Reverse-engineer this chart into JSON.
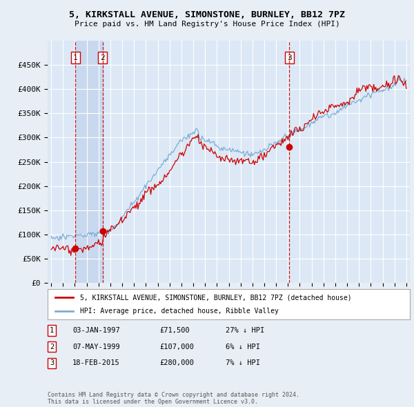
{
  "title": "5, KIRKSTALL AVENUE, SIMONSTONE, BURNLEY, BB12 7PZ",
  "subtitle": "Price paid vs. HM Land Registry's House Price Index (HPI)",
  "ylim": [
    0,
    500000
  ],
  "yticks": [
    0,
    50000,
    100000,
    150000,
    200000,
    250000,
    300000,
    350000,
    400000,
    450000
  ],
  "ytick_labels": [
    "£0",
    "£50K",
    "£100K",
    "£150K",
    "£200K",
    "£250K",
    "£300K",
    "£350K",
    "£400K",
    "£450K"
  ],
  "background_color": "#e8eef5",
  "plot_bg_color": "#dce8f5",
  "grid_color": "#ffffff",
  "red_line_color": "#cc0000",
  "blue_line_color": "#7badd4",
  "vline_color": "#cc0000",
  "shade_color": "#c8d8ee",
  "sale_points": [
    {
      "date_num": 1997.04,
      "price": 71500,
      "label": "1"
    },
    {
      "date_num": 1999.36,
      "price": 107000,
      "label": "2"
    },
    {
      "date_num": 2015.12,
      "price": 280000,
      "label": "3"
    }
  ],
  "vlines": [
    1997.04,
    1999.36,
    2015.12
  ],
  "legend_red": "5, KIRKSTALL AVENUE, SIMONSTONE, BURNLEY, BB12 7PZ (detached house)",
  "legend_blue": "HPI: Average price, detached house, Ribble Valley",
  "table_rows": [
    {
      "num": "1",
      "date": "03-JAN-1997",
      "price": "£71,500",
      "hpi": "27% ↓ HPI"
    },
    {
      "num": "2",
      "date": "07-MAY-1999",
      "price": "£107,000",
      "hpi": "6% ↓ HPI"
    },
    {
      "num": "3",
      "date": "18-FEB-2015",
      "price": "£280,000",
      "hpi": "7% ↓ HPI"
    }
  ],
  "copyright_text": "Contains HM Land Registry data © Crown copyright and database right 2024.\nThis data is licensed under the Open Government Licence v3.0.",
  "xtick_start": 1995,
  "xtick_end": 2025
}
